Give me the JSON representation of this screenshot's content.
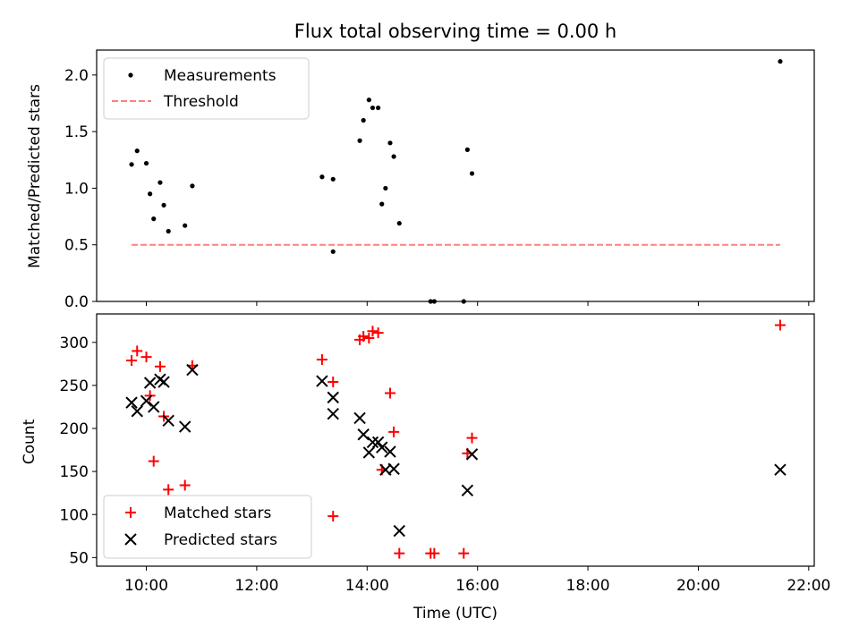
{
  "chart_data": [
    {
      "type": "scatter",
      "title": "Flux total observing time = 0.00 h",
      "xlabel": "",
      "ylabel": "Matched/Predicted stars",
      "xlim": [
        "09:06",
        "22:06"
      ],
      "ylim": [
        0,
        2.22
      ],
      "x_ticks": [
        "10:00",
        "12:00",
        "14:00",
        "16:00",
        "18:00",
        "20:00",
        "22:00"
      ],
      "y_ticks": [
        "0.0",
        "0.5",
        "1.0",
        "1.5",
        "2.0"
      ],
      "legend_position": "upper-left",
      "series": [
        {
          "name": "Measurements",
          "marker": "dot",
          "color": "#000000",
          "points": [
            [
              "09:44",
              1.21
            ],
            [
              "09:50",
              1.33
            ],
            [
              "10:00",
              1.22
            ],
            [
              "10:04",
              0.95
            ],
            [
              "10:08",
              0.73
            ],
            [
              "10:15",
              1.05
            ],
            [
              "10:19",
              0.85
            ],
            [
              "10:24",
              0.62
            ],
            [
              "10:42",
              0.67
            ],
            [
              "10:50",
              1.02
            ],
            [
              "13:11",
              1.1
            ],
            [
              "13:23",
              1.08
            ],
            [
              "13:23",
              0.44
            ],
            [
              "13:52",
              1.42
            ],
            [
              "13:56",
              1.6
            ],
            [
              "14:02",
              1.78
            ],
            [
              "14:06",
              1.71
            ],
            [
              "14:12",
              1.71
            ],
            [
              "14:16",
              0.86
            ],
            [
              "14:20",
              1.0
            ],
            [
              "14:25",
              1.4
            ],
            [
              "14:29",
              1.28
            ],
            [
              "14:35",
              0.69
            ],
            [
              "15:09",
              0.0
            ],
            [
              "15:13",
              0.0
            ],
            [
              "15:45",
              0.0
            ],
            [
              "15:49",
              1.34
            ],
            [
              "15:54",
              1.13
            ],
            [
              "21:29",
              2.12
            ]
          ]
        },
        {
          "name": "Threshold",
          "line": "dashed",
          "color": "#ff7f7f",
          "points": [
            [
              "09:44",
              0.5
            ],
            [
              "21:29",
              0.5
            ]
          ]
        }
      ]
    },
    {
      "type": "scatter",
      "title": "",
      "xlabel": "Time (UTC)",
      "ylabel": "Count",
      "xlim": [
        "09:06",
        "22:06"
      ],
      "ylim": [
        40,
        333
      ],
      "x_ticks": [
        "10:00",
        "12:00",
        "14:00",
        "16:00",
        "18:00",
        "20:00",
        "22:00"
      ],
      "y_ticks": [
        "50",
        "100",
        "150",
        "200",
        "250",
        "300"
      ],
      "legend_position": "lower-left",
      "series": [
        {
          "name": "Matched stars",
          "marker": "plus",
          "color": "#ff0000",
          "points": [
            [
              "09:44",
              279
            ],
            [
              "09:50",
              290
            ],
            [
              "10:00",
              283
            ],
            [
              "10:04",
              238
            ],
            [
              "10:08",
              162
            ],
            [
              "10:15",
              272
            ],
            [
              "10:19",
              214
            ],
            [
              "10:24",
              129
            ],
            [
              "10:42",
              134
            ],
            [
              "10:50",
              273
            ],
            [
              "13:11",
              280
            ],
            [
              "13:23",
              254
            ],
            [
              "13:23",
              98
            ],
            [
              "13:52",
              303
            ],
            [
              "13:56",
              307
            ],
            [
              "14:02",
              305
            ],
            [
              "14:06",
              313
            ],
            [
              "14:12",
              311
            ],
            [
              "14:16",
              152
            ],
            [
              "14:25",
              241
            ],
            [
              "14:29",
              196
            ],
            [
              "14:35",
              55
            ],
            [
              "15:09",
              55
            ],
            [
              "15:13",
              55
            ],
            [
              "15:45",
              55
            ],
            [
              "15:49",
              171
            ],
            [
              "15:54",
              189
            ],
            [
              "21:29",
              320
            ]
          ]
        },
        {
          "name": "Predicted stars",
          "marker": "x",
          "color": "#000000",
          "points": [
            [
              "09:44",
              230
            ],
            [
              "09:50",
              220
            ],
            [
              "10:00",
              232
            ],
            [
              "10:04",
              253
            ],
            [
              "10:08",
              225
            ],
            [
              "10:15",
              257
            ],
            [
              "10:19",
              254
            ],
            [
              "10:24",
              209
            ],
            [
              "10:42",
              202
            ],
            [
              "10:50",
              268
            ],
            [
              "13:11",
              255
            ],
            [
              "13:23",
              236
            ],
            [
              "13:23",
              217
            ],
            [
              "13:52",
              212
            ],
            [
              "13:56",
              193
            ],
            [
              "14:02",
              172
            ],
            [
              "14:06",
              184
            ],
            [
              "14:12",
              184
            ],
            [
              "14:16",
              178
            ],
            [
              "14:20",
              152
            ],
            [
              "14:25",
              173
            ],
            [
              "14:29",
              153
            ],
            [
              "14:35",
              81
            ],
            [
              "15:49",
              128
            ],
            [
              "15:54",
              170
            ],
            [
              "21:29",
              152
            ]
          ]
        }
      ]
    }
  ]
}
